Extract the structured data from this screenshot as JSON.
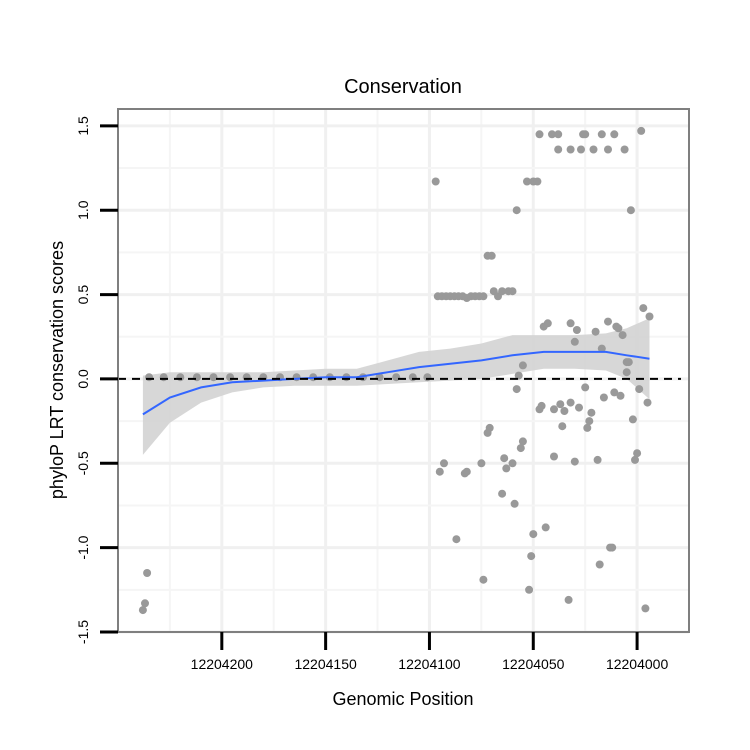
{
  "chart_data": {
    "type": "scatter",
    "title": "Conservation",
    "xlabel": "Genomic Position",
    "ylabel": "phyloP LRT conservation scores",
    "x_reversed": true,
    "xlim": [
      12204250,
      12203975
    ],
    "ylim": [
      -1.5,
      1.6
    ],
    "x_ticks": [
      12204200,
      12204150,
      12204100,
      12204050,
      12204000
    ],
    "x_tick_labels": [
      "12204200",
      "12204150",
      "12204100",
      "12204050",
      "12204000"
    ],
    "y_ticks": [
      -1.5,
      -1.0,
      -0.5,
      0.0,
      0.5,
      1.0,
      1.5
    ],
    "y_tick_labels": [
      "-1.5",
      "-1.0",
      "-0.5",
      "0.0",
      "0.5",
      "1.0",
      "1.5"
    ],
    "reference_line": {
      "y": 0,
      "style": "dashed"
    },
    "grid": true,
    "colors": {
      "points": "#999999",
      "smooth": "#3366ff",
      "ribbon": "#d3d3d3",
      "frame": "#7f7f7f"
    },
    "points": [
      {
        "x": 12204238,
        "y": -1.37
      },
      {
        "x": 12204237,
        "y": -1.33
      },
      {
        "x": 12204236,
        "y": -1.15
      },
      {
        "x": 12204235,
        "y": 0.01
      },
      {
        "x": 12204228,
        "y": 0.01
      },
      {
        "x": 12204220,
        "y": 0.01
      },
      {
        "x": 12204212,
        "y": 0.01
      },
      {
        "x": 12204204,
        "y": 0.01
      },
      {
        "x": 12204196,
        "y": 0.01
      },
      {
        "x": 12204188,
        "y": 0.01
      },
      {
        "x": 12204180,
        "y": 0.01
      },
      {
        "x": 12204172,
        "y": 0.01
      },
      {
        "x": 12204164,
        "y": 0.01
      },
      {
        "x": 12204156,
        "y": 0.01
      },
      {
        "x": 12204148,
        "y": 0.01
      },
      {
        "x": 12204140,
        "y": 0.01
      },
      {
        "x": 12204132,
        "y": 0.01
      },
      {
        "x": 12204124,
        "y": 0.01
      },
      {
        "x": 12204116,
        "y": 0.01
      },
      {
        "x": 12204108,
        "y": 0.01
      },
      {
        "x": 12204101,
        "y": 0.01
      },
      {
        "x": 12204097,
        "y": 1.17
      },
      {
        "x": 12204096,
        "y": 0.49
      },
      {
        "x": 12204094,
        "y": 0.49
      },
      {
        "x": 12204092,
        "y": 0.49
      },
      {
        "x": 12204090,
        "y": 0.49
      },
      {
        "x": 12204088,
        "y": 0.49
      },
      {
        "x": 12204086,
        "y": 0.49
      },
      {
        "x": 12204084,
        "y": 0.49
      },
      {
        "x": 12204082,
        "y": 0.48
      },
      {
        "x": 12204080,
        "y": 0.49
      },
      {
        "x": 12204078,
        "y": 0.49
      },
      {
        "x": 12204076,
        "y": 0.49
      },
      {
        "x": 12204074,
        "y": 0.49
      },
      {
        "x": 12204095,
        "y": -0.55
      },
      {
        "x": 12204093,
        "y": -0.5
      },
      {
        "x": 12204087,
        "y": -0.95
      },
      {
        "x": 12204083,
        "y": -0.56
      },
      {
        "x": 12204082,
        "y": -0.55
      },
      {
        "x": 12204075,
        "y": -0.5
      },
      {
        "x": 12204074,
        "y": -1.19
      },
      {
        "x": 12204072,
        "y": 0.73
      },
      {
        "x": 12204070,
        "y": 0.73
      },
      {
        "x": 12204072,
        "y": -0.32
      },
      {
        "x": 12204071,
        "y": -0.29
      },
      {
        "x": 12204069,
        "y": 0.52
      },
      {
        "x": 12204067,
        "y": 0.49
      },
      {
        "x": 12204065,
        "y": 0.52
      },
      {
        "x": 12204064,
        "y": -0.47
      },
      {
        "x": 12204065,
        "y": -0.68
      },
      {
        "x": 12204063,
        "y": -0.53
      },
      {
        "x": 12204062,
        "y": 0.52
      },
      {
        "x": 12204060,
        "y": 0.52
      },
      {
        "x": 12204060,
        "y": -0.5
      },
      {
        "x": 12204059,
        "y": -0.74
      },
      {
        "x": 12204058,
        "y": 1.0
      },
      {
        "x": 12204057,
        "y": 0.02
      },
      {
        "x": 12204058,
        "y": -0.06
      },
      {
        "x": 12204056,
        "y": -0.41
      },
      {
        "x": 12204055,
        "y": -0.37
      },
      {
        "x": 12204055,
        "y": 0.08
      },
      {
        "x": 12204053,
        "y": 1.17
      },
      {
        "x": 12204052,
        "y": -1.25
      },
      {
        "x": 12204051,
        "y": -1.05
      },
      {
        "x": 12204050,
        "y": -0.92
      },
      {
        "x": 12204050,
        "y": 1.17
      },
      {
        "x": 12204048,
        "y": 1.17
      },
      {
        "x": 12204047,
        "y": 1.45
      },
      {
        "x": 12204047,
        "y": -0.18
      },
      {
        "x": 12204046,
        "y": -0.16
      },
      {
        "x": 12204045,
        "y": 0.31
      },
      {
        "x": 12204044,
        "y": -0.88
      },
      {
        "x": 12204043,
        "y": 0.33
      },
      {
        "x": 12204041,
        "y": 1.45
      },
      {
        "x": 12204040,
        "y": -0.46
      },
      {
        "x": 12204040,
        "y": -0.18
      },
      {
        "x": 12204038,
        "y": 1.45
      },
      {
        "x": 12204038,
        "y": 1.36
      },
      {
        "x": 12204037,
        "y": -0.15
      },
      {
        "x": 12204036,
        "y": -0.28
      },
      {
        "x": 12204035,
        "y": -0.19
      },
      {
        "x": 12204033,
        "y": -1.31
      },
      {
        "x": 12204032,
        "y": 1.36
      },
      {
        "x": 12204032,
        "y": 0.33
      },
      {
        "x": 12204032,
        "y": -0.14
      },
      {
        "x": 12204030,
        "y": 0.22
      },
      {
        "x": 12204030,
        "y": -0.49
      },
      {
        "x": 12204029,
        "y": 0.29
      },
      {
        "x": 12204028,
        "y": -0.17
      },
      {
        "x": 12204027,
        "y": 1.36
      },
      {
        "x": 12204026,
        "y": 1.45
      },
      {
        "x": 12204025,
        "y": 1.45
      },
      {
        "x": 12204025,
        "y": -0.05
      },
      {
        "x": 12204024,
        "y": -0.29
      },
      {
        "x": 12204023,
        "y": -0.25
      },
      {
        "x": 12204022,
        "y": -0.2
      },
      {
        "x": 12204021,
        "y": 1.36
      },
      {
        "x": 12204020,
        "y": 0.28
      },
      {
        "x": 12204019,
        "y": -0.48
      },
      {
        "x": 12204018,
        "y": -1.1
      },
      {
        "x": 12204017,
        "y": 1.45
      },
      {
        "x": 12204017,
        "y": 0.18
      },
      {
        "x": 12204016,
        "y": -0.11
      },
      {
        "x": 12204014,
        "y": 1.36
      },
      {
        "x": 12204014,
        "y": 0.34
      },
      {
        "x": 12204013,
        "y": -1.0
      },
      {
        "x": 12204012,
        "y": -1.0
      },
      {
        "x": 12204011,
        "y": 1.45
      },
      {
        "x": 12204011,
        "y": -0.08
      },
      {
        "x": 12204010,
        "y": 0.31
      },
      {
        "x": 12204009,
        "y": 0.3
      },
      {
        "x": 12204008,
        "y": -0.1
      },
      {
        "x": 12204007,
        "y": 0.26
      },
      {
        "x": 12204006,
        "y": 1.36
      },
      {
        "x": 12204005,
        "y": 0.1
      },
      {
        "x": 12204005,
        "y": 0.04
      },
      {
        "x": 12204004,
        "y": 0.1
      },
      {
        "x": 12204003,
        "y": 1.0
      },
      {
        "x": 12204002,
        "y": -0.24
      },
      {
        "x": 12204001,
        "y": -0.48
      },
      {
        "x": 12204000,
        "y": -0.44
      },
      {
        "x": 12203999,
        "y": -0.06
      },
      {
        "x": 12203998,
        "y": 1.47
      },
      {
        "x": 12203997,
        "y": 0.42
      },
      {
        "x": 12203996,
        "y": -1.36
      },
      {
        "x": 12203995,
        "y": -0.14
      },
      {
        "x": 12203994,
        "y": 0.37
      }
    ],
    "smooth_line": [
      {
        "x": 12204238,
        "y": -0.21,
        "lo": -0.45,
        "hi": 0.02
      },
      {
        "x": 12204225,
        "y": -0.11,
        "lo": -0.26,
        "hi": 0.04
      },
      {
        "x": 12204210,
        "y": -0.05,
        "lo": -0.14,
        "hi": 0.04
      },
      {
        "x": 12204195,
        "y": -0.02,
        "lo": -0.08,
        "hi": 0.04
      },
      {
        "x": 12204180,
        "y": -0.01,
        "lo": -0.05,
        "hi": 0.04
      },
      {
        "x": 12204165,
        "y": 0.0,
        "lo": -0.04,
        "hi": 0.05
      },
      {
        "x": 12204150,
        "y": 0.01,
        "lo": -0.04,
        "hi": 0.06
      },
      {
        "x": 12204135,
        "y": 0.01,
        "lo": -0.04,
        "hi": 0.06
      },
      {
        "x": 12204120,
        "y": 0.04,
        "lo": -0.03,
        "hi": 0.11
      },
      {
        "x": 12204105,
        "y": 0.07,
        "lo": -0.02,
        "hi": 0.16
      },
      {
        "x": 12204090,
        "y": 0.09,
        "lo": -0.01,
        "hi": 0.18
      },
      {
        "x": 12204075,
        "y": 0.11,
        "lo": 0.0,
        "hi": 0.21
      },
      {
        "x": 12204060,
        "y": 0.14,
        "lo": 0.03,
        "hi": 0.26
      },
      {
        "x": 12204045,
        "y": 0.16,
        "lo": 0.06,
        "hi": 0.26
      },
      {
        "x": 12204030,
        "y": 0.16,
        "lo": 0.06,
        "hi": 0.26
      },
      {
        "x": 12204015,
        "y": 0.16,
        "lo": 0.05,
        "hi": 0.27
      },
      {
        "x": 12204005,
        "y": 0.14,
        "lo": 0.0,
        "hi": 0.3
      },
      {
        "x": 12203994,
        "y": 0.12,
        "lo": -0.12,
        "hi": 0.36
      }
    ]
  }
}
